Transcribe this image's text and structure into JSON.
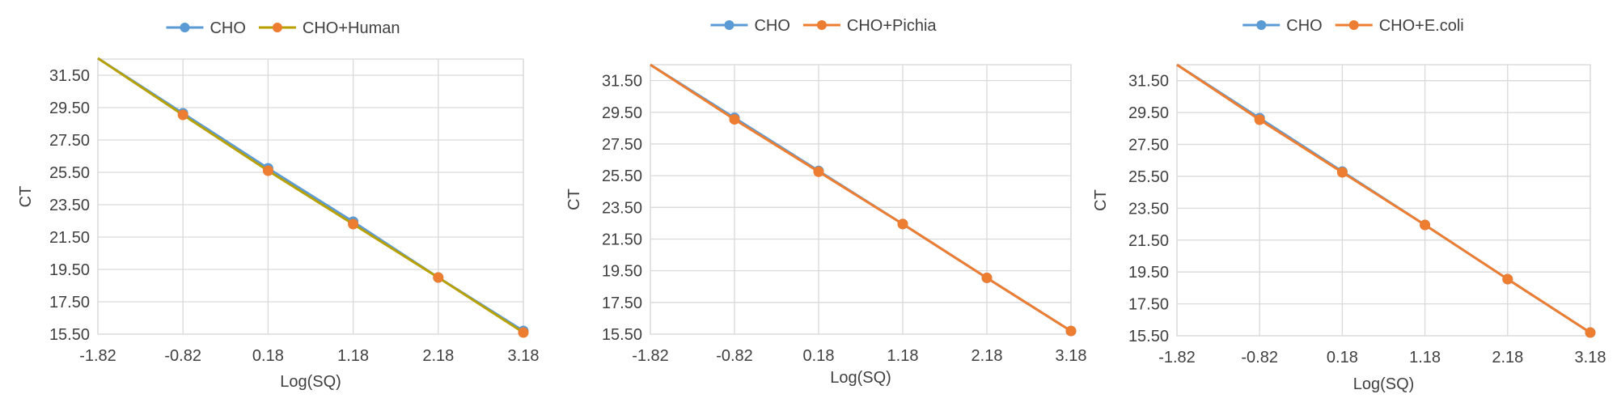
{
  "chart_data": [
    {
      "type": "line",
      "title": "",
      "xlabel": "Log(SQ)",
      "ylabel": "CT",
      "xlim": [
        -1.82,
        3.18
      ],
      "ylim": [
        15.5,
        32.5
      ],
      "x_ticks": [
        "-1.82",
        "-0.82",
        "0.18",
        "1.18",
        "2.18",
        "3.18"
      ],
      "y_ticks": [
        "15.50",
        "17.50",
        "19.50",
        "21.50",
        "23.50",
        "25.50",
        "27.50",
        "29.50",
        "31.50"
      ],
      "grid": true,
      "legend_position": "top",
      "series": [
        {
          "name": "CHO",
          "color": "#5b9bd5",
          "line_start": [
            -1.82,
            32.55
          ],
          "x": [
            -0.82,
            0.18,
            1.18,
            2.18,
            3.18
          ],
          "y": [
            29.15,
            25.75,
            22.45,
            19.0,
            15.7
          ]
        },
        {
          "name": "CHO+Human",
          "color": "#ed7d31",
          "line_color": "#b8a000",
          "line_start": [
            -1.82,
            32.55
          ],
          "x": [
            -0.82,
            0.18,
            1.18,
            2.18,
            3.18
          ],
          "y": [
            29.05,
            25.6,
            22.3,
            19.0,
            15.6
          ]
        }
      ]
    },
    {
      "type": "line",
      "title": "",
      "xlabel": "Log(SQ)",
      "ylabel": "CT",
      "xlim": [
        -1.82,
        3.18
      ],
      "ylim": [
        15.5,
        32.5
      ],
      "x_ticks": [
        "-1.82",
        "-0.82",
        "0.18",
        "1.18",
        "2.18",
        "3.18"
      ],
      "y_ticks": [
        "15.50",
        "17.50",
        "19.50",
        "21.50",
        "23.50",
        "25.50",
        "27.50",
        "29.50",
        "31.50"
      ],
      "grid": true,
      "legend_position": "top",
      "series": [
        {
          "name": "CHO",
          "color": "#5b9bd5",
          "line_start": [
            -1.82,
            32.5
          ],
          "x": [
            -0.82,
            0.18,
            1.18,
            2.18,
            3.18
          ],
          "y": [
            29.15,
            25.8,
            22.45,
            19.05,
            15.7
          ]
        },
        {
          "name": "CHO+Pichia",
          "color": "#ed7d31",
          "line_start": [
            -1.82,
            32.5
          ],
          "x": [
            -0.82,
            0.18,
            1.18,
            2.18,
            3.18
          ],
          "y": [
            29.05,
            25.75,
            22.45,
            19.05,
            15.7
          ]
        }
      ]
    },
    {
      "type": "line",
      "title": "",
      "xlabel": "Log(SQ)",
      "ylabel": "CT",
      "xlim": [
        -1.82,
        3.18
      ],
      "ylim": [
        15.5,
        32.5
      ],
      "x_ticks": [
        "-1.82",
        "-0.82",
        "0.18",
        "1.18",
        "2.18",
        "3.18"
      ],
      "y_ticks": [
        "15.50",
        "17.50",
        "19.50",
        "21.50",
        "23.50",
        "25.50",
        "27.50",
        "29.50",
        "31.50"
      ],
      "grid": true,
      "legend_position": "top",
      "series": [
        {
          "name": "CHO",
          "color": "#5b9bd5",
          "line_start": [
            -1.82,
            32.5
          ],
          "x": [
            -0.82,
            0.18,
            1.18,
            2.18,
            3.18
          ],
          "y": [
            29.15,
            25.8,
            22.45,
            19.05,
            15.7
          ]
        },
        {
          "name": "CHO+E.coli",
          "color": "#ed7d31",
          "line_start": [
            -1.82,
            32.5
          ],
          "x": [
            -0.82,
            0.18,
            1.18,
            2.18,
            3.18
          ],
          "y": [
            29.05,
            25.75,
            22.45,
            19.05,
            15.7
          ]
        }
      ]
    }
  ]
}
